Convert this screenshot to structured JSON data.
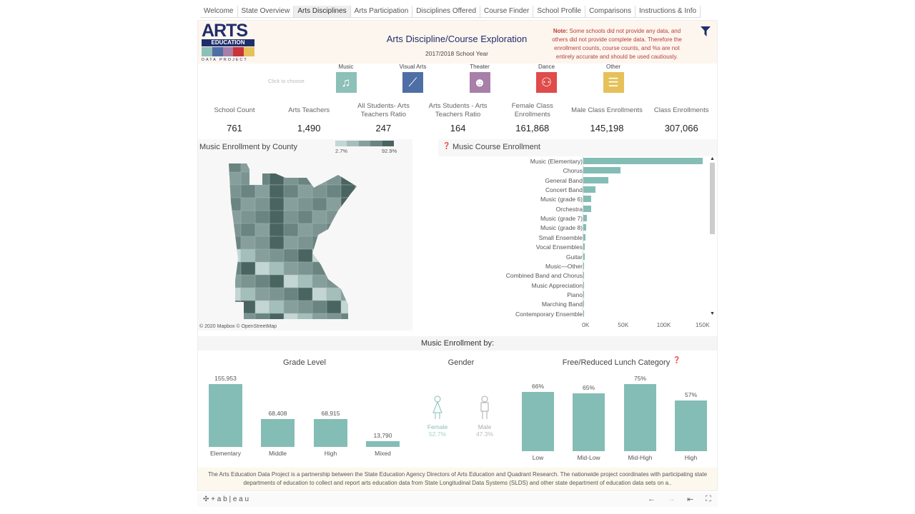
{
  "tabs": [
    "Welcome",
    "State Overview",
    "Arts Disciplines",
    "Arts Participation",
    "Disciplines Offered",
    "Course Finder",
    "School Profile",
    "Comparisons",
    "Instructions & Info"
  ],
  "active_tab": "Arts Disciplines",
  "header": {
    "logo_line1": "ARTS",
    "logo_line2": "EDUCATION",
    "logo_line3": "DATA PROJECT",
    "title": "Arts Discipline/Course Exploration",
    "subtitle": "2017/2018 School Year",
    "note_label": "Note:",
    "note": " Some schools did not provide any data, and others did not provide complete data. Therefore the enrollment counts, course counts, and %s are not entirely accurate and should be used cautiously."
  },
  "click_to_choose": "Click to choose",
  "disciplines": [
    {
      "label": "Music",
      "color": "#8cc0b8",
      "icon": "music-note"
    },
    {
      "label": "Visual Arts",
      "color": "#4e6fa5",
      "icon": "paintbrush"
    },
    {
      "label": "Theater",
      "color": "#a77fa8",
      "icon": "theater-masks"
    },
    {
      "label": "Dance",
      "color": "#e04b4b",
      "icon": "dancers"
    },
    {
      "label": "Other",
      "color": "#e6c15a",
      "icon": "stack"
    }
  ],
  "kpis": [
    {
      "label": "School Count",
      "value": "761"
    },
    {
      "label": "Arts Teachers",
      "value": "1,490"
    },
    {
      "label": "All Students- Arts Teachers Ratio",
      "value": "247"
    },
    {
      "label": "Arts Students - Arts Teachers Ratio",
      "value": "164"
    },
    {
      "label": "Female Class Enrollments",
      "value": "161,868"
    },
    {
      "label": "Male Class Enrollments",
      "value": "145,198"
    },
    {
      "label": "Class Enrollments",
      "value": "307,066"
    }
  ],
  "map": {
    "title": "Music Enrollment by County",
    "legend_min": "2.7%",
    "legend_max": "92.9%",
    "attribution": "© 2020 Mapbox © OpenStreetMap"
  },
  "chart_data": [
    {
      "type": "bar",
      "orientation": "horizontal",
      "title": "Music Course Enrollment",
      "categories": [
        "Music (Elementary)",
        "Chorus",
        "General Band",
        "Concert Band",
        "Music (grade 6)",
        "Orchestra",
        "Music (grade 7)",
        "Music (grade 8)",
        "Small Ensemble",
        "Vocal Ensembles",
        "Guitar",
        "Music—Other",
        "Combined Band and Chorus",
        "Music Appreciation",
        "Piano",
        "Marching Band",
        "Contemporary Ensemble"
      ],
      "values": [
        154000,
        48000,
        32000,
        15500,
        10000,
        10000,
        4500,
        4000,
        2500,
        2000,
        1500,
        1000,
        900,
        800,
        700,
        600,
        500
      ],
      "xticks": [
        "0K",
        "50K",
        "100K",
        "150K"
      ],
      "xlim": [
        0,
        150000
      ],
      "color": "#84bdb6"
    },
    {
      "type": "bar",
      "title": "Grade Level",
      "categories": [
        "Elementary",
        "Middle",
        "High",
        "Mixed"
      ],
      "values": [
        155953,
        68408,
        68915,
        13790
      ],
      "labels": [
        "155,953",
        "68,408",
        "68,915",
        "13,790"
      ]
    },
    {
      "type": "bar",
      "title": "Free/Reduced Lunch Category",
      "categories": [
        "Low",
        "Mid-Low",
        "Mid-High",
        "High"
      ],
      "values": [
        66,
        65,
        75,
        57
      ],
      "labels": [
        "66%",
        "65%",
        "75%",
        "57%"
      ]
    }
  ],
  "enroll_by": "Music Enrollment by:",
  "gender": {
    "title": "Gender",
    "female_label": "Female",
    "female_pct": "52.7%",
    "male_label": "Male",
    "male_pct": "47.3%"
  },
  "footer_text": "The Arts Education Data Project is a partnership between the State Education Agency Directors of Arts Education and Quadrant Research. The nationwide project coordinates with participating state departments of education to collect and report arts education data from State Longitudinal Data Systems (SLDS) and other state department of education data sets on a..",
  "tableau": "+ a b | e a u"
}
